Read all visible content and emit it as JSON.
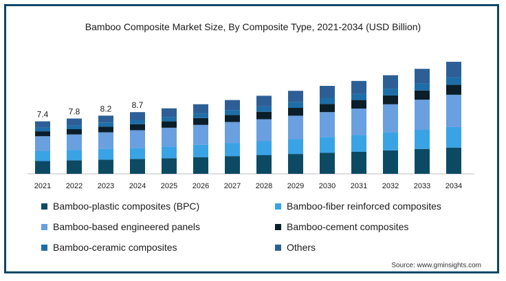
{
  "chart_data": {
    "type": "bar",
    "stacked": true,
    "title": "Bamboo Composite Market Size, By Composite Type, 2021-2034 (USD Billion)",
    "xlabel": "",
    "ylabel": "",
    "categories": [
      "2021",
      "2022",
      "2023",
      "2024",
      "2025",
      "2026",
      "2027",
      "2028",
      "2029",
      "2030",
      "2031",
      "2032",
      "2033",
      "2034"
    ],
    "total_labels": [
      "7.4",
      "7.8",
      "8.2",
      "8.7",
      "",
      "",
      "",
      "",
      "",
      "",
      "",
      "",
      "",
      ""
    ],
    "ylim": [
      0,
      18.5
    ],
    "grid": false,
    "legend_position": "bottom",
    "series": [
      {
        "name": "Bamboo-plastic composites (BPC)",
        "color": "#0c4a63",
        "values": [
          1.8,
          1.9,
          2.0,
          2.1,
          2.2,
          2.35,
          2.5,
          2.65,
          2.8,
          2.95,
          3.1,
          3.3,
          3.5,
          3.7
        ]
      },
      {
        "name": "Bamboo-fiber reinforced composites",
        "color": "#3aa3e6",
        "values": [
          1.4,
          1.45,
          1.5,
          1.55,
          1.65,
          1.75,
          1.85,
          1.95,
          2.1,
          2.25,
          2.4,
          2.55,
          2.7,
          2.9
        ]
      },
      {
        "name": "Bamboo-based engineered panels",
        "color": "#6a9fe0",
        "values": [
          2.1,
          2.2,
          2.35,
          2.5,
          2.65,
          2.8,
          2.95,
          3.1,
          3.3,
          3.5,
          3.7,
          3.95,
          4.25,
          4.55
        ]
      },
      {
        "name": "Bamboo-cement composites",
        "color": "#0a1f2a",
        "values": [
          0.7,
          0.75,
          0.8,
          0.85,
          0.9,
          0.95,
          1.0,
          1.05,
          1.1,
          1.15,
          1.2,
          1.25,
          1.3,
          1.4
        ]
      },
      {
        "name": "Bamboo-ceramic composites",
        "color": "#1d6ea8",
        "values": [
          0.5,
          0.52,
          0.55,
          0.6,
          0.63,
          0.66,
          0.7,
          0.75,
          0.8,
          0.85,
          0.9,
          0.95,
          1.0,
          1.05
        ]
      },
      {
        "name": "Others",
        "color": "#2d5f96",
        "values": [
          0.9,
          0.98,
          1.0,
          1.1,
          1.2,
          1.3,
          1.4,
          1.5,
          1.6,
          1.7,
          1.8,
          1.9,
          2.05,
          2.2
        ]
      }
    ]
  },
  "legend_order": [
    0,
    1,
    2,
    3,
    4,
    5
  ],
  "source": "Source: www.gminsights.com"
}
